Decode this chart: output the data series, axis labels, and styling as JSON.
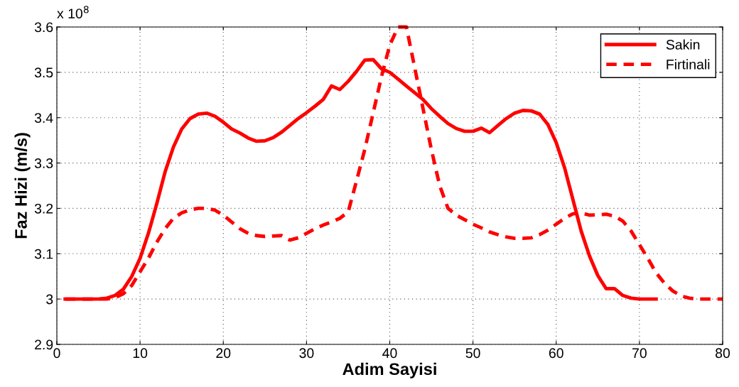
{
  "chart_data": {
    "type": "line",
    "xlabel": "Adim Sayisi",
    "ylabel": "Faz Hizi (m/s)",
    "annotations": [
      "x 10$^{8}$"
    ],
    "xlim": [
      0,
      80
    ],
    "xticks": [
      0,
      10,
      20,
      30,
      40,
      50,
      60,
      70,
      80
    ],
    "ylim": [
      2.9,
      3.6
    ],
    "yticks": [
      2.9,
      3,
      3.1,
      3.2,
      3.3,
      3.4,
      3.5,
      3.6
    ],
    "grid": true,
    "legend": "top right",
    "marker": "none",
    "series": [
      {
        "name": "Sakin",
        "color": "#ff0000",
        "line_style": "solid",
        "x": [
          1,
          2,
          3,
          4,
          5,
          6,
          7,
          8,
          9,
          10,
          11,
          12,
          13,
          14,
          15,
          16,
          17,
          18,
          19,
          20,
          21,
          22,
          23,
          24,
          25,
          26,
          27,
          28,
          29,
          30,
          31,
          32,
          33,
          34,
          35,
          36,
          37,
          38,
          39,
          40,
          41,
          42,
          43,
          44,
          45,
          46,
          47,
          48,
          49,
          50,
          51,
          52,
          53,
          54,
          55,
          56,
          57,
          58,
          59,
          60,
          61,
          62,
          63,
          64,
          65,
          66,
          67,
          68,
          69,
          70,
          71,
          72
        ],
        "values": [
          3.0,
          3.0,
          3.0,
          3.0,
          3.0,
          3.002,
          3.008,
          3.022,
          3.05,
          3.09,
          3.145,
          3.21,
          3.28,
          3.335,
          3.375,
          3.398,
          3.408,
          3.41,
          3.403,
          3.39,
          3.375,
          3.366,
          3.355,
          3.348,
          3.349,
          3.356,
          3.368,
          3.383,
          3.398,
          3.411,
          3.425,
          3.44,
          3.47,
          3.462,
          3.48,
          3.502,
          3.527,
          3.528,
          3.508,
          3.5,
          3.485,
          3.47,
          3.455,
          3.44,
          3.42,
          3.403,
          3.387,
          3.376,
          3.37,
          3.37,
          3.377,
          3.367,
          3.383,
          3.398,
          3.41,
          3.416,
          3.415,
          3.408,
          3.385,
          3.345,
          3.29,
          3.22,
          3.15,
          3.095,
          3.052,
          3.023,
          3.023,
          3.008,
          3.002,
          3.0,
          3.0,
          3.0
        ]
      },
      {
        "name": "Firtinali",
        "color": "#ff0000",
        "line_style": "dashed",
        "x": [
          1,
          2,
          3,
          4,
          5,
          6,
          7,
          8,
          9,
          10,
          11,
          12,
          13,
          14,
          15,
          16,
          17,
          18,
          19,
          20,
          21,
          22,
          23,
          24,
          25,
          26,
          27,
          28,
          29,
          30,
          31,
          32,
          33,
          34,
          35,
          36,
          37,
          38,
          39,
          40,
          41,
          42,
          43,
          44,
          45,
          46,
          47,
          48,
          49,
          50,
          51,
          52,
          53,
          54,
          55,
          56,
          57,
          58,
          59,
          60,
          61,
          62,
          63,
          64,
          65,
          66,
          67,
          68,
          69,
          70,
          71,
          72,
          73,
          74,
          75,
          76,
          77,
          78,
          79,
          80
        ],
        "values": [
          3.0,
          3.0,
          3.0,
          3.0,
          3.0,
          3.0,
          3.003,
          3.012,
          3.03,
          3.06,
          3.09,
          3.125,
          3.155,
          3.178,
          3.19,
          3.197,
          3.2,
          3.2,
          3.196,
          3.185,
          3.17,
          3.155,
          3.145,
          3.14,
          3.138,
          3.139,
          3.14,
          3.13,
          3.135,
          3.145,
          3.155,
          3.163,
          3.17,
          3.178,
          3.192,
          3.26,
          3.33,
          3.41,
          3.49,
          3.56,
          3.6,
          3.6,
          3.51,
          3.42,
          3.33,
          3.25,
          3.2,
          3.185,
          3.175,
          3.165,
          3.157,
          3.148,
          3.142,
          3.137,
          3.134,
          3.134,
          3.135,
          3.142,
          3.152,
          3.165,
          3.178,
          3.188,
          3.19,
          3.185,
          3.186,
          3.187,
          3.183,
          3.172,
          3.15,
          3.12,
          3.09,
          3.058,
          3.035,
          3.018,
          3.007,
          3.002,
          3.0,
          3.0,
          3.0,
          3.0
        ]
      }
    ]
  }
}
